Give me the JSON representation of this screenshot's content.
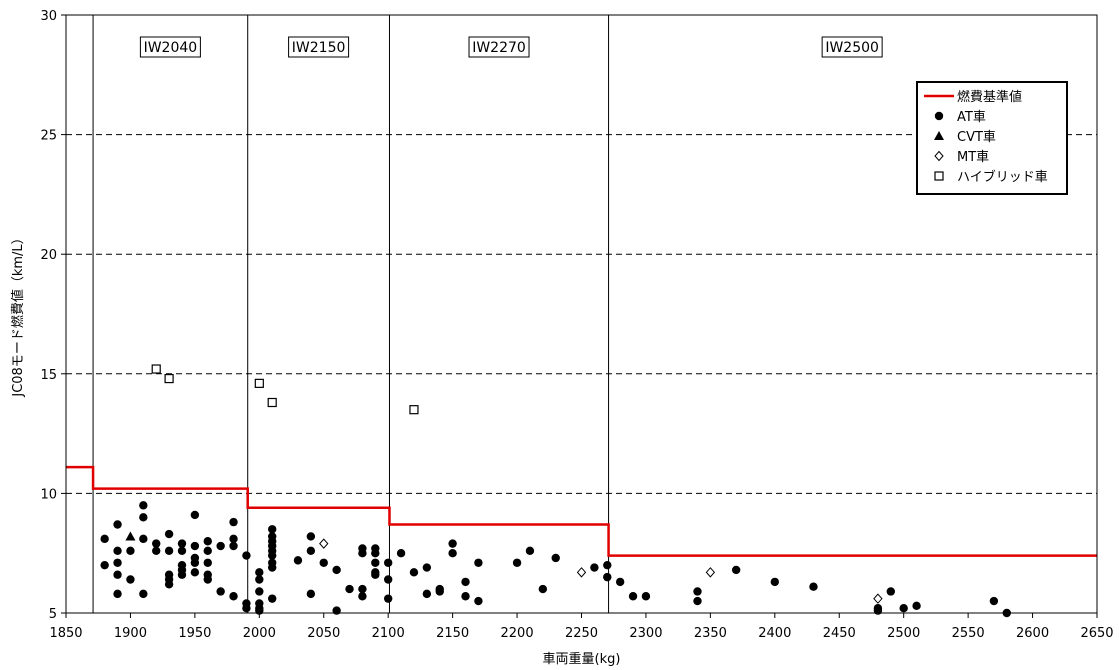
{
  "chart_data": {
    "type": "scatter",
    "xlabel": "車両重量(kg)",
    "ylabel": "JC08モード燃費値（km/L）",
    "xlim": [
      1850,
      2650
    ],
    "ylim": [
      5,
      30
    ],
    "x_ticks": [
      1850,
      1900,
      1950,
      2000,
      2050,
      2100,
      2150,
      2200,
      2250,
      2300,
      2350,
      2400,
      2450,
      2500,
      2550,
      2600,
      2650
    ],
    "y_ticks": [
      5,
      10,
      15,
      20,
      25,
      30
    ],
    "grid": "horizontal dashed",
    "legend_position": "top-right",
    "class_boundaries": [
      1871,
      1991,
      2101,
      2271
    ],
    "class_labels": [
      {
        "label": "IW2040",
        "x_center": 1931
      },
      {
        "label": "IW2150",
        "x_center": 2046
      },
      {
        "label": "IW2270",
        "x_center": 2186
      },
      {
        "label": "IW2500",
        "x_center": 2460
      }
    ],
    "standard_line": {
      "name": "燃費基準値",
      "color": "#e00000",
      "steps": [
        {
          "x_start": 1850,
          "x_end": 1871,
          "y": 11.1
        },
        {
          "x_start": 1871,
          "x_end": 1991,
          "y": 10.2
        },
        {
          "x_start": 1991,
          "x_end": 2101,
          "y": 9.4
        },
        {
          "x_start": 2101,
          "x_end": 2271,
          "y": 8.7
        },
        {
          "x_start": 2271,
          "x_end": 2650,
          "y": 7.4
        }
      ]
    },
    "series": [
      {
        "name": "AT車",
        "marker": "circle",
        "points": [
          [
            1880,
            8.1
          ],
          [
            1880,
            7.0
          ],
          [
            1890,
            8.7
          ],
          [
            1890,
            7.6
          ],
          [
            1890,
            7.1
          ],
          [
            1890,
            6.6
          ],
          [
            1890,
            5.8
          ],
          [
            1900,
            7.6
          ],
          [
            1900,
            6.4
          ],
          [
            1910,
            9.5
          ],
          [
            1910,
            9.0
          ],
          [
            1910,
            8.1
          ],
          [
            1910,
            5.8
          ],
          [
            1920,
            7.9
          ],
          [
            1920,
            7.6
          ],
          [
            1930,
            8.3
          ],
          [
            1930,
            7.6
          ],
          [
            1930,
            6.6
          ],
          [
            1930,
            6.4
          ],
          [
            1930,
            6.2
          ],
          [
            1940,
            7.9
          ],
          [
            1940,
            7.6
          ],
          [
            1940,
            7.0
          ],
          [
            1940,
            6.8
          ],
          [
            1940,
            6.6
          ],
          [
            1950,
            9.1
          ],
          [
            1950,
            7.8
          ],
          [
            1950,
            7.3
          ],
          [
            1950,
            7.1
          ],
          [
            1950,
            6.7
          ],
          [
            1960,
            8.0
          ],
          [
            1960,
            7.6
          ],
          [
            1960,
            7.1
          ],
          [
            1960,
            6.6
          ],
          [
            1960,
            6.4
          ],
          [
            1970,
            7.8
          ],
          [
            1970,
            5.9
          ],
          [
            1980,
            8.8
          ],
          [
            1980,
            8.1
          ],
          [
            1980,
            7.8
          ],
          [
            1980,
            5.7
          ],
          [
            1990,
            7.4
          ],
          [
            1990,
            5.4
          ],
          [
            1990,
            5.2
          ],
          [
            2000,
            6.7
          ],
          [
            2000,
            6.4
          ],
          [
            2000,
            5.9
          ],
          [
            2000,
            5.4
          ],
          [
            2000,
            5.2
          ],
          [
            2000,
            5.1
          ],
          [
            2010,
            8.5
          ],
          [
            2010,
            8.2
          ],
          [
            2010,
            8.0
          ],
          [
            2010,
            7.8
          ],
          [
            2010,
            7.6
          ],
          [
            2010,
            7.4
          ],
          [
            2010,
            7.1
          ],
          [
            2010,
            6.9
          ],
          [
            2010,
            5.6
          ],
          [
            2030,
            7.2
          ],
          [
            2040,
            8.2
          ],
          [
            2040,
            7.6
          ],
          [
            2040,
            5.8
          ],
          [
            2050,
            7.1
          ],
          [
            2060,
            6.8
          ],
          [
            2060,
            5.1
          ],
          [
            2070,
            6.0
          ],
          [
            2080,
            7.7
          ],
          [
            2080,
            7.5
          ],
          [
            2080,
            6.0
          ],
          [
            2080,
            5.7
          ],
          [
            2090,
            7.7
          ],
          [
            2090,
            7.5
          ],
          [
            2090,
            7.1
          ],
          [
            2090,
            6.7
          ],
          [
            2090,
            6.6
          ],
          [
            2100,
            7.1
          ],
          [
            2100,
            6.4
          ],
          [
            2100,
            5.6
          ],
          [
            2110,
            7.5
          ],
          [
            2120,
            6.7
          ],
          [
            2130,
            6.9
          ],
          [
            2130,
            5.8
          ],
          [
            2140,
            6.0
          ],
          [
            2140,
            5.9
          ],
          [
            2150,
            7.9
          ],
          [
            2150,
            7.5
          ],
          [
            2160,
            6.3
          ],
          [
            2160,
            5.7
          ],
          [
            2170,
            7.1
          ],
          [
            2170,
            5.5
          ],
          [
            2200,
            7.1
          ],
          [
            2210,
            7.6
          ],
          [
            2220,
            6.0
          ],
          [
            2230,
            7.3
          ],
          [
            2260,
            6.9
          ],
          [
            2270,
            7.0
          ],
          [
            2270,
            6.5
          ],
          [
            2280,
            6.3
          ],
          [
            2290,
            5.7
          ],
          [
            2300,
            5.7
          ],
          [
            2340,
            5.9
          ],
          [
            2340,
            5.5
          ],
          [
            2370,
            6.8
          ],
          [
            2400,
            6.3
          ],
          [
            2430,
            6.1
          ],
          [
            2480,
            5.2
          ],
          [
            2480,
            5.1
          ],
          [
            2490,
            5.9
          ],
          [
            2500,
            5.2
          ],
          [
            2510,
            5.3
          ],
          [
            2570,
            5.5
          ],
          [
            2580,
            5.0
          ]
        ]
      },
      {
        "name": "CVT車",
        "marker": "triangle",
        "points": [
          [
            1900,
            8.2
          ]
        ]
      },
      {
        "name": "MT車",
        "marker": "diamond",
        "points": [
          [
            2050,
            7.9
          ],
          [
            2250,
            6.7
          ],
          [
            2350,
            6.7
          ],
          [
            2480,
            5.6
          ]
        ]
      },
      {
        "name": "ハイブリッド車",
        "marker": "square",
        "points": [
          [
            1920,
            15.2
          ],
          [
            1930,
            14.8
          ],
          [
            2000,
            14.6
          ],
          [
            2010,
            13.8
          ],
          [
            2120,
            13.5
          ]
        ]
      }
    ],
    "legend": [
      {
        "label": "燃費基準値",
        "marker": "line"
      },
      {
        "label": "AT車",
        "marker": "circle"
      },
      {
        "label": "CVT車",
        "marker": "triangle"
      },
      {
        "label": "MT車",
        "marker": "diamond"
      },
      {
        "label": "ハイブリッド車",
        "marker": "square"
      }
    ]
  }
}
